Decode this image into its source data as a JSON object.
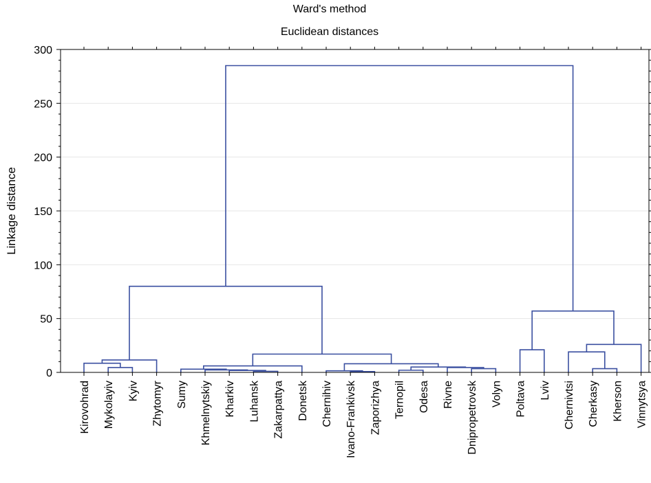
{
  "chart_data": {
    "type": "dendrogram",
    "title": "Ward's method",
    "subtitle": "Euclidean distances",
    "ylabel": "Linkage distance",
    "xlabel": "",
    "ylim": [
      0,
      300
    ],
    "yticks": [
      0,
      50,
      100,
      150,
      200,
      250,
      300
    ],
    "grid": true,
    "line_color": "#3a4fa0",
    "leaves": [
      "Kirovohrad",
      "Mykolayiv",
      "Kyiv",
      "Zhytomyr",
      "Sumy",
      "Khmelnytskiy",
      "Kharkiv",
      "Luhansk",
      "Zakarpattya",
      "Donetsk",
      "Chernihiv",
      "Ivano-Frankivsk",
      "Zaporizhya",
      "Ternopil",
      "Odesa",
      "Rivne",
      "Dnipropetrovsk",
      "Volyn",
      "Poltava",
      "Lviv",
      "Chernivtsi",
      "Cherkasy",
      "Kherson",
      "Vinnytsya"
    ],
    "merges": [
      {
        "left": "Mykolayiv",
        "right": "Kyiv",
        "height": 4.5
      },
      {
        "left": "Kirovohrad",
        "right": "Mykolayiv+Kyiv",
        "height": 8.5
      },
      {
        "left": "Kirovohrad+Mykolayiv+Kyiv",
        "right": "Zhytomyr",
        "height": 11.5
      },
      {
        "left": "Luhansk",
        "right": "Zakarpattya",
        "height": 1.0
      },
      {
        "left": "Kharkiv",
        "right": "Luhansk+Zakarpattya",
        "height": 1.8
      },
      {
        "left": "Khmelnytskiy",
        "right": "Kharkiv+Luhansk+Zakarpattya",
        "height": 2.3
      },
      {
        "left": "Sumy",
        "right": "Khmelnytskiy+Kharkiv+Luhansk+Zakarpattya",
        "height": 3.0
      },
      {
        "left": "Sumy..Zakarpattya",
        "right": "Donetsk",
        "height": 6.0
      },
      {
        "left": "Ivano-Frankivsk",
        "right": "Zaporizhya",
        "height": 0.8
      },
      {
        "left": "Chernihiv",
        "right": "Ivano-Frankivsk+Zaporizhya",
        "height": 1.5
      },
      {
        "left": "Ternopil",
        "right": "Odesa",
        "height": 2.0
      },
      {
        "left": "Dnipropetrovsk",
        "right": "Volyn",
        "height": 3.5
      },
      {
        "left": "Rivne",
        "right": "Dnipropetrovsk+Volyn",
        "height": 4.5
      },
      {
        "left": "Ternopil+Odesa",
        "right": "Rivne+Dnipropetrovsk+Volyn",
        "height": 5.0
      },
      {
        "left": "Chernihiv+Ivano-Frankivsk+Zaporizhya",
        "right": "Ternopil..Volyn",
        "height": 8.0
      },
      {
        "left": "Sumy..Donetsk",
        "right": "Chernihiv..Volyn",
        "height": 17.0
      },
      {
        "left": "Kirovohrad..Zhytomyr",
        "right": "Sumy..Volyn",
        "height": 80.0
      },
      {
        "left": "Poltava",
        "right": "Lviv",
        "height": 21.0
      },
      {
        "left": "Cherkasy",
        "right": "Kherson",
        "height": 3.5
      },
      {
        "left": "Chernivtsi",
        "right": "Cherkasy+Kherson",
        "height": 19.0
      },
      {
        "left": "Chernivtsi+Cherkasy+Kherson",
        "right": "Vinnytsya",
        "height": 26.0
      },
      {
        "left": "Poltava+Lviv",
        "right": "Chernivtsi..Vinnytsya",
        "height": 57.0
      },
      {
        "left": "Kirovohrad..Volyn",
        "right": "Poltava..Vinnytsya",
        "height": 285.0
      }
    ]
  }
}
